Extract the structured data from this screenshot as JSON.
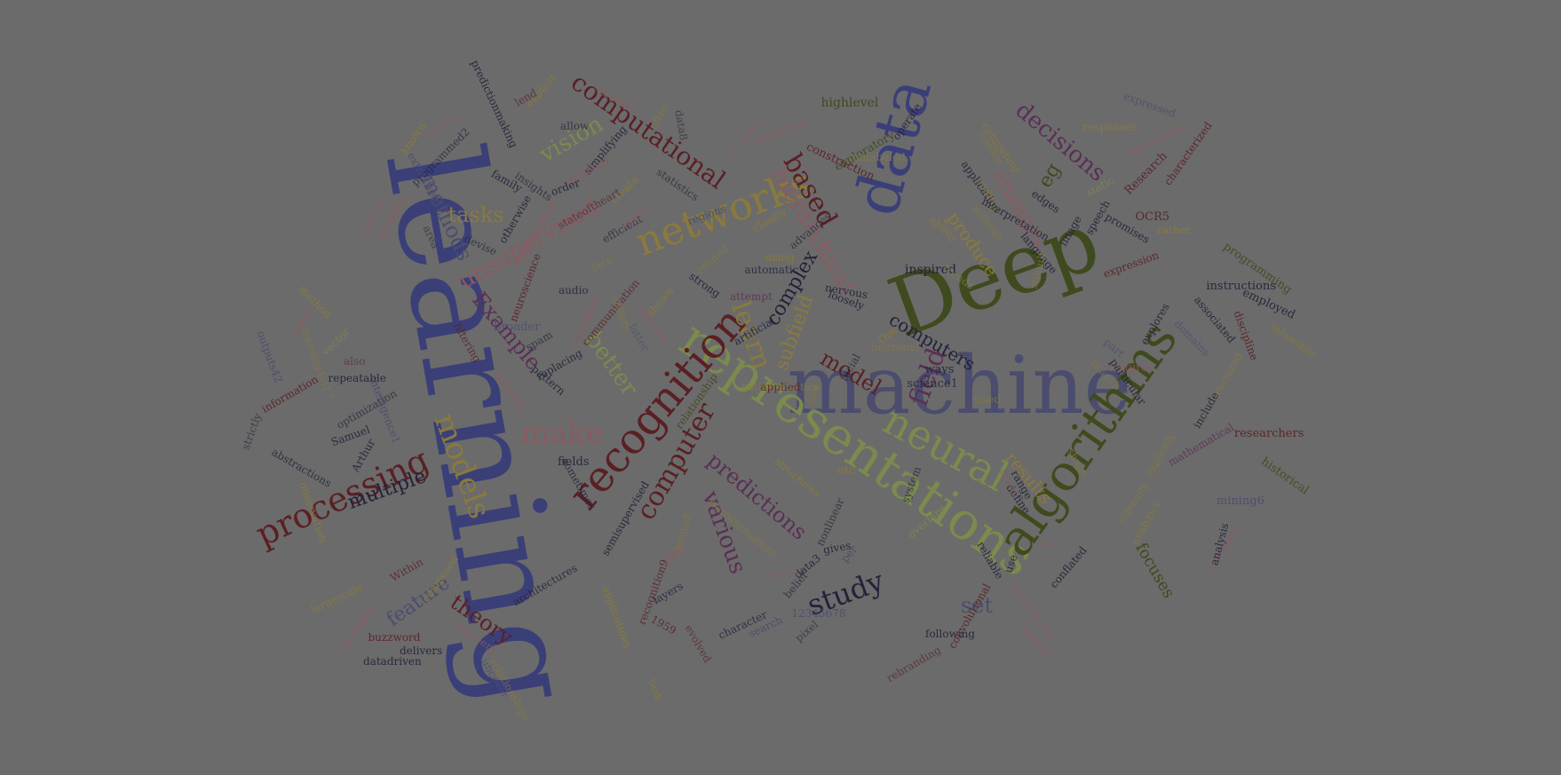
{
  "palette": {
    "background": "#6b6b6b",
    "navy": "#3b3f78",
    "olive": "#3f4a1e",
    "sage": "#7b8a4e",
    "maroon": "#5a1f24",
    "plum": "#5b2f55",
    "ochre": "#8a7a3c",
    "rose": "#8a5a60",
    "slate": "#4a4d6e",
    "ink": "#22223a"
  },
  "words": [
    {
      "t": "learning",
      "c": "navy"
    },
    {
      "t": "machine",
      "c": "slate"
    },
    {
      "t": "Deep",
      "c": "olive"
    },
    {
      "t": "data",
      "c": "navy"
    },
    {
      "t": "representations",
      "c": "sage"
    },
    {
      "t": "algorithms",
      "c": "olive"
    },
    {
      "t": "recognition",
      "c": "maroon"
    },
    {
      "t": "neural",
      "c": "sage"
    },
    {
      "t": "networks",
      "c": "ochre"
    },
    {
      "t": "processing",
      "c": "maroon"
    },
    {
      "t": "models",
      "c": "ochre"
    },
    {
      "t": "computer",
      "c": "maroon"
    },
    {
      "t": "computational",
      "c": "maroon"
    },
    {
      "t": "unsupervised",
      "c": "rose"
    },
    {
      "t": "make",
      "c": "rose"
    },
    {
      "t": "learn",
      "c": "ochre"
    },
    {
      "t": "hierarchical",
      "c": "rose"
    },
    {
      "t": "based",
      "c": "maroon"
    },
    {
      "t": "decisions",
      "c": "plum"
    },
    {
      "t": "vision",
      "c": "sage"
    },
    {
      "t": "methods",
      "c": "slate"
    },
    {
      "t": "tasks",
      "c": "ochre"
    },
    {
      "t": "Example",
      "c": "plum"
    },
    {
      "t": "better",
      "c": "sage"
    },
    {
      "t": "various",
      "c": "plum"
    },
    {
      "t": "predictions",
      "c": "plum"
    },
    {
      "t": "study",
      "c": "ink"
    },
    {
      "t": "set",
      "c": "slate"
    },
    {
      "t": "theory",
      "c": "maroon"
    },
    {
      "t": "multiple",
      "c": "ink"
    },
    {
      "t": "feature",
      "c": "slate"
    },
    {
      "t": "field",
      "c": "plum"
    },
    {
      "t": "model",
      "c": "maroon"
    },
    {
      "t": "complex",
      "c": "ink"
    },
    {
      "t": "subfield",
      "c": "ochre"
    },
    {
      "t": "computers",
      "c": "ink"
    },
    {
      "t": "produce",
      "c": "ochre"
    },
    {
      "t": "attempts",
      "c": "rose"
    },
    {
      "t": "eg",
      "c": "olive"
    },
    {
      "t": "results",
      "c": "ochre"
    },
    {
      "t": "focuses",
      "c": "olive"
    },
    {
      "t": "inspired",
      "c": "ink"
    },
    {
      "t": "highlevel",
      "c": "olive"
    },
    {
      "t": "exploratory",
      "c": "olive"
    },
    {
      "t": "construction",
      "c": "maroon"
    },
    {
      "t": "analytical",
      "c": "rose"
    },
    {
      "t": "designing",
      "c": "rose"
    },
    {
      "t": "unlabeled",
      "c": "ochre"
    },
    {
      "t": "operate",
      "c": "ink"
    },
    {
      "t": "hidden",
      "c": "ochre"
    },
    {
      "t": "computing",
      "c": "ochre"
    },
    {
      "t": "responses",
      "c": "ochre"
    },
    {
      "t": "represented",
      "c": "rose"
    },
    {
      "t": "expressed",
      "c": "slate"
    },
    {
      "t": "characterized",
      "c": "maroon"
    },
    {
      "t": "Research",
      "c": "maroon"
    },
    {
      "t": "static",
      "c": "sage"
    },
    {
      "t": "OCR5",
      "c": "maroon"
    },
    {
      "t": "rather",
      "c": "ochre"
    },
    {
      "t": "promises",
      "c": "ink"
    },
    {
      "t": "speech",
      "c": "ink"
    },
    {
      "t": "expression",
      "c": "maroon"
    },
    {
      "t": "image",
      "c": "ink"
    },
    {
      "t": "language",
      "c": "ink"
    },
    {
      "t": "edges",
      "c": "ink"
    },
    {
      "t": "interpretation",
      "c": "ink"
    },
    {
      "t": "application",
      "c": "ink"
    },
    {
      "t": "coding",
      "c": "ochre"
    },
    {
      "t": "without",
      "c": "ochre"
    },
    {
      "t": "ability",
      "c": "ochre"
    },
    {
      "t": "stimuli",
      "c": "ochre"
    },
    {
      "t": "trends",
      "c": "sage"
    },
    {
      "t": "programming",
      "c": "olive"
    },
    {
      "t": "instructions",
      "c": "ink"
    },
    {
      "t": "employed",
      "c": "ink"
    },
    {
      "t": "infeasible",
      "c": "ochre"
    },
    {
      "t": "associated",
      "c": "ink"
    },
    {
      "t": "discipline",
      "c": "maroon"
    },
    {
      "t": "explores",
      "c": "ink"
    },
    {
      "t": "domains",
      "c": "slate"
    },
    {
      "t": "part",
      "c": "slate"
    },
    {
      "t": "features",
      "c": "rose"
    },
    {
      "t": "structured",
      "c": "ochre"
    },
    {
      "t": "particular",
      "c": "ink"
    },
    {
      "t": "branch",
      "c": "ochre"
    },
    {
      "t": "include",
      "c": "ink"
    },
    {
      "t": "researchers",
      "c": "maroon"
    },
    {
      "t": "used",
      "c": "ochre"
    },
    {
      "t": "historical",
      "c": "olive"
    },
    {
      "t": "mathematical",
      "c": "plum"
    },
    {
      "t": "explicitly",
      "c": "ochre"
    },
    {
      "t": "intensity",
      "c": "ochre"
    },
    {
      "t": "mining6",
      "c": "slate"
    },
    {
      "t": "analytics",
      "c": "ochre"
    },
    {
      "t": "scientists",
      "c": "rose"
    },
    {
      "t": "analysis",
      "c": "ink"
    },
    {
      "t": "shape",
      "c": "ochre"
    },
    {
      "t": "range",
      "c": "ink"
    },
    {
      "t": "define",
      "c": "ink"
    },
    {
      "t": "many",
      "c": "rose"
    },
    {
      "t": "way",
      "c": "rose"
    },
    {
      "t": "use",
      "c": "ink"
    },
    {
      "t": "conflated",
      "c": "ink"
    },
    {
      "t": "networks1213",
      "c": "rose"
    },
    {
      "t": "optical",
      "c": "rose"
    },
    {
      "t": "reliable",
      "c": "ink"
    },
    {
      "t": "convolutional",
      "c": "maroon"
    },
    {
      "t": "following",
      "c": "ink"
    },
    {
      "t": "rebranding",
      "c": "maroon"
    },
    {
      "t": "overlaps",
      "c": "sage"
    },
    {
      "t": "system",
      "c": "ink"
    },
    {
      "t": "etc",
      "c": "ochre"
    },
    {
      "t": "ways",
      "c": "ink"
    },
    {
      "t": "science1",
      "c": "ink"
    },
    {
      "t": "neuronal",
      "c": "ochre"
    },
    {
      "t": "One",
      "c": "ochre"
    },
    {
      "t": "loosely",
      "c": "ink"
    },
    {
      "t": "nervous",
      "c": "ink"
    },
    {
      "t": "facial",
      "c": "ink"
    },
    {
      "t": "ties",
      "c": "ochre"
    },
    {
      "t": "structures",
      "c": "ochre"
    },
    {
      "t": "nonlinear",
      "c": "ink"
    },
    {
      "t": "per",
      "c": "slate"
    },
    {
      "t": "gives",
      "c": "ink"
    },
    {
      "t": "data3",
      "c": "ink"
    },
    {
      "t": "belief",
      "c": "ink"
    },
    {
      "t": "natural",
      "c": "rose"
    },
    {
      "t": "12345678",
      "c": "slate"
    },
    {
      "t": "pixel",
      "c": "ink"
    },
    {
      "t": "search",
      "c": "slate"
    },
    {
      "t": "character",
      "c": "ink"
    },
    {
      "t": "transformations",
      "c": "ochre"
    },
    {
      "t": "defined",
      "c": "ochre"
    },
    {
      "t": "like",
      "c": "rose"
    },
    {
      "t": "layers",
      "c": "ink"
    },
    {
      "t": "recognition9",
      "c": "maroon"
    },
    {
      "t": "1959",
      "c": "maroon"
    },
    {
      "t": "evolved",
      "c": "maroon"
    },
    {
      "t": "applications",
      "c": "ochre"
    },
    {
      "t": "semisupervised",
      "c": "ink"
    },
    {
      "t": "architectures",
      "c": "ink"
    },
    {
      "t": "task",
      "c": "ochre"
    },
    {
      "t": "relationships",
      "c": "ochre"
    },
    {
      "t": "uncover",
      "c": "slate"
    },
    {
      "t": "engineers",
      "c": "rose"
    },
    {
      "t": "composed",
      "c": "ochre"
    },
    {
      "t": "Within",
      "c": "maroon"
    },
    {
      "t": "largescale",
      "c": "ochre"
    },
    {
      "t": "prediction",
      "c": "rose"
    },
    {
      "t": "buzzword",
      "c": "maroon"
    },
    {
      "t": "delivers",
      "c": "ink"
    },
    {
      "t": "datadriven",
      "c": "ink"
    },
    {
      "t": "sometimes",
      "c": "ink"
    },
    {
      "t": "fields",
      "c": "ink"
    },
    {
      "t": "relationship",
      "c": "olive"
    },
    {
      "t": "Arthur",
      "c": "ink"
    },
    {
      "t": "Samuel",
      "c": "ink"
    },
    {
      "t": "abstractions",
      "c": "ink"
    },
    {
      "t": "observation",
      "c": "ochre"
    },
    {
      "t": "optimization",
      "c": "ink"
    },
    {
      "t": "intelligence1",
      "c": "slate"
    },
    {
      "t": "information",
      "c": "maroon"
    },
    {
      "t": "strictly",
      "c": "ink"
    },
    {
      "t": "learning4vi17",
      "c": "ochre"
    },
    {
      "t": "outputs42",
      "c": "slate"
    },
    {
      "t": "repeatable",
      "c": "ink"
    },
    {
      "t": "also",
      "c": "maroon"
    },
    {
      "t": "vector",
      "c": "sage"
    },
    {
      "t": "inputs",
      "c": "rose"
    },
    {
      "t": "method",
      "c": "ochre"
    },
    {
      "t": "filtering",
      "c": "maroon"
    },
    {
      "t": "building",
      "c": "rose"
    },
    {
      "t": "pattern",
      "c": "ink"
    },
    {
      "t": "replacing",
      "c": "ink"
    },
    {
      "t": "spam",
      "c": "ink"
    },
    {
      "t": "broader",
      "c": "slate"
    },
    {
      "t": "examples",
      "c": "rose"
    },
    {
      "t": "communication",
      "c": "maroon"
    },
    {
      "t": "neuroscience",
      "c": "maroon"
    },
    {
      "t": "audio",
      "c": "ink"
    },
    {
      "t": "face",
      "c": "ochre"
    },
    {
      "t": "latter",
      "c": "slate"
    },
    {
      "t": "others",
      "c": "ochre"
    },
    {
      "t": "patterns",
      "c": "rose"
    },
    {
      "t": "shown",
      "c": "ochre"
    },
    {
      "t": "artificial",
      "c": "ink"
    },
    {
      "t": "strong",
      "c": "ink"
    },
    {
      "t": "attempt",
      "c": "plum"
    },
    {
      "t": "automatic",
      "c": "ink"
    },
    {
      "t": "using",
      "c": "ochre"
    },
    {
      "t": "related",
      "c": "ochre"
    },
    {
      "t": "advances",
      "c": "ink"
    },
    {
      "t": "closely",
      "c": "ochre"
    },
    {
      "t": "regions",
      "c": "slate"
    },
    {
      "t": "statistics",
      "c": "ink"
    },
    {
      "t": "efficient",
      "c": "ink"
    },
    {
      "t": "values",
      "c": "rose"
    },
    {
      "t": "create",
      "c": "ochre"
    },
    {
      "t": "stateoftheart",
      "c": "maroon"
    },
    {
      "t": "simplifying",
      "c": "ink"
    },
    {
      "t": "recurrent",
      "c": "rose"
    },
    {
      "t": "order",
      "c": "ink"
    },
    {
      "t": "allow",
      "c": "ink"
    },
    {
      "t": "data8",
      "c": "ink"
    },
    {
      "t": "often",
      "c": "ochre"
    },
    {
      "t": "brain11",
      "c": "rose"
    },
    {
      "t": "explicit",
      "c": "ochre"
    },
    {
      "t": "lend",
      "c": "maroon"
    },
    {
      "t": "predictionmaking",
      "c": "ink"
    },
    {
      "t": "engines",
      "c": "rose"
    },
    {
      "t": "programmed2",
      "c": "ink"
    },
    {
      "t": "known",
      "c": "ochre"
    },
    {
      "t": "extraction10",
      "c": "slate"
    },
    {
      "t": "family",
      "c": "ink"
    },
    {
      "t": "insights",
      "c": "ink"
    },
    {
      "t": "otherwise",
      "c": "ink"
    },
    {
      "t": "handcrafted",
      "c": "rose"
    },
    {
      "t": "devise",
      "c": "ink"
    },
    {
      "t": "area",
      "c": "ink"
    },
    {
      "t": "abstract",
      "c": "rose"
    },
    {
      "t": "program",
      "c": "rose"
    },
    {
      "t": "bioinformatics",
      "c": "ochre"
    },
    {
      "t": "applied",
      "c": "maroon"
    }
  ]
}
